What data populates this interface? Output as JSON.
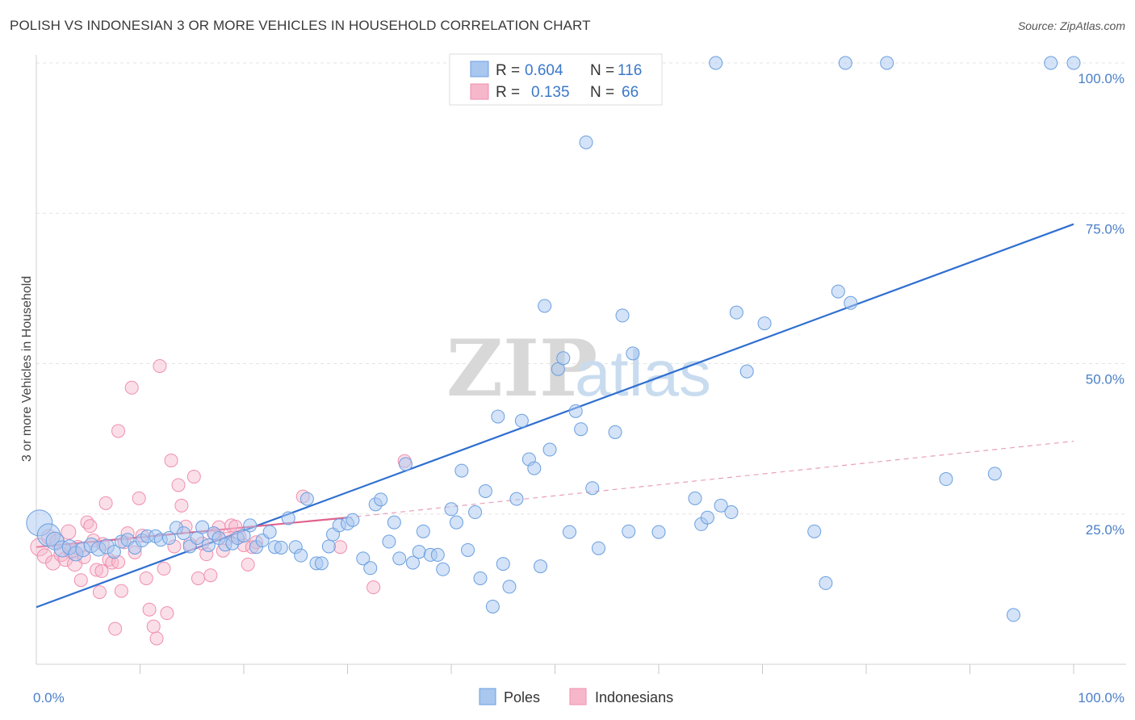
{
  "title": "POLISH VS INDONESIAN 3 OR MORE VEHICLES IN HOUSEHOLD CORRELATION CHART",
  "source": "Source: ZipAtlas.com",
  "watermark": {
    "zip": "ZIP",
    "atlas": "atlas"
  },
  "legend": {
    "rows": [
      {
        "r_label": "R =",
        "r_value": "0.604",
        "n_label": "N =",
        "n_value": "116",
        "color": "#a9c7ef"
      },
      {
        "r_label": "R =",
        "r_value": "0.135",
        "n_label": "N =",
        "n_value": "66",
        "color": "#f7b7cb"
      }
    ]
  },
  "bottom_legend": [
    {
      "label": "Poles",
      "color": "#a9c7ef"
    },
    {
      "label": "Indonesians",
      "color": "#f7b7cb"
    }
  ],
  "chart_data": {
    "type": "scatter",
    "title": "POLISH VS INDONESIAN 3 OR MORE VEHICLES IN HOUSEHOLD CORRELATION CHART",
    "xlabel": "",
    "ylabel": "3 or more Vehicles in Household",
    "xlim": [
      0,
      100
    ],
    "ylim": [
      0,
      100
    ],
    "x_tick_labels": [
      "0.0%",
      "100.0%"
    ],
    "y_ticks": [
      25,
      50,
      75,
      100
    ],
    "y_tick_labels": [
      "25.0%",
      "50.0%",
      "75.0%",
      "100.0%"
    ],
    "grid": true,
    "legend_position": "top-center",
    "series": [
      {
        "name": "Poles",
        "color": "#6a9fe0",
        "fill": "#a9c7ef",
        "trend": {
          "x": [
            0,
            100
          ],
          "y": [
            9.5,
            73.2
          ],
          "color": "#2f6fd0"
        },
        "points": [
          [
            0.3,
            23.5,
            16
          ],
          [
            1.2,
            21.5,
            14
          ],
          [
            1.8,
            20.5,
            11
          ],
          [
            2.5,
            19.2,
            10
          ],
          [
            3.2,
            19.5,
            9
          ],
          [
            3.8,
            18.4,
            9
          ],
          [
            4.5,
            19.1,
            9
          ],
          [
            5.3,
            19.8,
            9
          ],
          [
            6.0,
            19.2,
            9
          ],
          [
            6.8,
            19.6,
            9
          ],
          [
            7.5,
            18.7,
            8
          ],
          [
            8.2,
            20.4,
            8
          ],
          [
            8.8,
            20.7,
            8
          ],
          [
            9.5,
            19.4,
            8
          ],
          [
            10.2,
            20.6,
            8
          ],
          [
            10.7,
            21.3,
            8
          ],
          [
            11.5,
            21.3,
            8
          ],
          [
            12.0,
            20.7,
            8
          ],
          [
            12.8,
            21.0,
            8
          ],
          [
            13.5,
            22.7,
            8
          ],
          [
            14.2,
            21.8,
            8
          ],
          [
            14.8,
            19.6,
            8
          ],
          [
            15.5,
            21.0,
            8
          ],
          [
            16.0,
            22.8,
            8
          ],
          [
            16.6,
            19.8,
            8
          ],
          [
            17.1,
            21.8,
            8
          ],
          [
            17.6,
            21.0,
            8
          ],
          [
            18.2,
            19.9,
            8
          ],
          [
            18.9,
            20.1,
            8
          ],
          [
            19.4,
            21.0,
            8
          ],
          [
            20.0,
            21.4,
            8
          ],
          [
            20.6,
            23.1,
            8
          ],
          [
            21.2,
            19.5,
            8
          ],
          [
            21.8,
            20.6,
            8
          ],
          [
            22.5,
            22.0,
            8
          ],
          [
            23.0,
            19.5,
            8
          ],
          [
            23.6,
            19.4,
            8
          ],
          [
            24.3,
            24.3,
            8
          ],
          [
            25.0,
            19.5,
            8
          ],
          [
            25.5,
            18.1,
            8
          ],
          [
            26.1,
            27.5,
            8
          ],
          [
            27.0,
            16.8,
            8
          ],
          [
            27.5,
            16.8,
            8
          ],
          [
            28.2,
            19.6,
            8
          ],
          [
            28.6,
            21.6,
            8
          ],
          [
            29.2,
            23.1,
            8
          ],
          [
            30.0,
            23.4,
            8
          ],
          [
            30.5,
            24.0,
            8
          ],
          [
            31.5,
            17.6,
            8
          ],
          [
            32.2,
            16.0,
            8
          ],
          [
            32.7,
            26.6,
            8
          ],
          [
            33.2,
            27.4,
            8
          ],
          [
            34.0,
            20.4,
            8
          ],
          [
            34.5,
            23.6,
            8
          ],
          [
            35.0,
            17.6,
            8
          ],
          [
            35.6,
            33.3,
            8
          ],
          [
            36.3,
            16.9,
            8
          ],
          [
            36.9,
            18.7,
            8
          ],
          [
            37.3,
            22.1,
            8
          ],
          [
            38.0,
            18.2,
            8
          ],
          [
            38.7,
            18.2,
            8
          ],
          [
            39.2,
            15.8,
            8
          ],
          [
            40.0,
            25.8,
            8
          ],
          [
            40.5,
            23.6,
            8
          ],
          [
            41.0,
            32.2,
            8
          ],
          [
            41.6,
            19.0,
            8
          ],
          [
            42.3,
            25.3,
            8
          ],
          [
            42.8,
            14.3,
            8
          ],
          [
            43.3,
            28.8,
            8
          ],
          [
            44.0,
            9.6,
            8
          ],
          [
            44.5,
            41.2,
            8
          ],
          [
            45.0,
            16.7,
            8
          ],
          [
            45.6,
            12.9,
            8
          ],
          [
            46.3,
            27.5,
            8
          ],
          [
            46.8,
            40.5,
            8
          ],
          [
            47.5,
            34.1,
            8
          ],
          [
            48.0,
            32.6,
            8
          ],
          [
            48.6,
            16.3,
            8
          ],
          [
            49.0,
            59.6,
            8
          ],
          [
            49.5,
            35.7,
            8
          ],
          [
            50.3,
            49.1,
            8
          ],
          [
            50.8,
            50.9,
            8
          ],
          [
            51.4,
            22.0,
            8
          ],
          [
            52.0,
            42.1,
            8
          ],
          [
            52.5,
            39.1,
            8
          ],
          [
            53.0,
            86.8,
            8
          ],
          [
            53.6,
            29.3,
            8
          ],
          [
            54.2,
            19.3,
            8
          ],
          [
            55.0,
            100.0,
            8
          ],
          [
            55.8,
            38.6,
            8
          ],
          [
            56.5,
            58.0,
            8
          ],
          [
            57.1,
            22.1,
            8
          ],
          [
            57.5,
            51.7,
            8
          ],
          [
            58.0,
            100.0,
            8
          ],
          [
            59.1,
            100.0,
            8
          ],
          [
            63.5,
            27.6,
            8
          ],
          [
            64.1,
            23.3,
            8
          ],
          [
            64.7,
            24.4,
            8
          ],
          [
            65.5,
            100.0,
            8
          ],
          [
            66.0,
            26.4,
            8
          ],
          [
            67.0,
            25.3,
            8
          ],
          [
            67.5,
            58.5,
            8
          ],
          [
            68.5,
            48.7,
            8
          ],
          [
            70.2,
            56.7,
            8
          ],
          [
            75.0,
            22.1,
            8
          ],
          [
            76.1,
            13.5,
            8
          ],
          [
            77.3,
            62.0,
            8
          ],
          [
            78.0,
            100.0,
            8
          ],
          [
            87.7,
            30.8,
            8
          ],
          [
            92.4,
            31.7,
            8
          ],
          [
            94.2,
            8.2,
            8
          ],
          [
            97.8,
            100.0,
            8
          ],
          [
            100.0,
            100.0,
            8
          ],
          [
            82.0,
            100.0,
            8
          ],
          [
            78.5,
            60.1,
            8
          ],
          [
            60.0,
            22.0,
            8
          ]
        ]
      },
      {
        "name": "Indonesians",
        "color": "#ef8fae",
        "fill": "#f7b7cb",
        "trend_solid": {
          "x": [
            0,
            30
          ],
          "y": [
            19.5,
            24.4
          ],
          "color": "#e0628d"
        },
        "trend_dashed": {
          "x": [
            30,
            100
          ],
          "y": [
            24.4,
            37.1
          ],
          "color": "#e8a0b8"
        },
        "points": [
          [
            0.3,
            19.5,
            11
          ],
          [
            0.8,
            18.0,
            9
          ],
          [
            1.2,
            21.2,
            9
          ],
          [
            1.6,
            16.9,
            9
          ],
          [
            2.0,
            20.4,
            9
          ],
          [
            2.4,
            18.3,
            9
          ],
          [
            2.8,
            17.5,
            9
          ],
          [
            3.1,
            22.0,
            9
          ],
          [
            3.4,
            18.8,
            9
          ],
          [
            3.7,
            16.7,
            9
          ],
          [
            4.0,
            19.4,
            9
          ],
          [
            4.3,
            14.0,
            8
          ],
          [
            4.6,
            17.8,
            8
          ],
          [
            4.9,
            23.6,
            8
          ],
          [
            5.2,
            23.0,
            8
          ],
          [
            5.5,
            20.6,
            8
          ],
          [
            5.8,
            15.7,
            8
          ],
          [
            6.1,
            12.0,
            8
          ],
          [
            6.4,
            20.0,
            8
          ],
          [
            6.7,
            26.8,
            8
          ],
          [
            7.0,
            17.4,
            8
          ],
          [
            7.3,
            16.9,
            8
          ],
          [
            7.6,
            5.9,
            8
          ],
          [
            7.9,
            38.8,
            8
          ],
          [
            8.2,
            12.2,
            8
          ],
          [
            8.5,
            20.3,
            8
          ],
          [
            8.8,
            21.8,
            8
          ],
          [
            9.2,
            46.0,
            8
          ],
          [
            9.5,
            18.6,
            8
          ],
          [
            9.9,
            27.6,
            8
          ],
          [
            10.2,
            21.4,
            8
          ],
          [
            10.6,
            14.3,
            8
          ],
          [
            10.9,
            9.1,
            8
          ],
          [
            11.3,
            6.3,
            8
          ],
          [
            11.6,
            4.3,
            8
          ],
          [
            11.9,
            49.6,
            8
          ],
          [
            12.3,
            15.9,
            8
          ],
          [
            12.6,
            8.5,
            8
          ],
          [
            13.0,
            33.9,
            8
          ],
          [
            13.3,
            19.6,
            8
          ],
          [
            13.7,
            29.8,
            8
          ],
          [
            14.0,
            26.4,
            8
          ],
          [
            14.4,
            22.9,
            8
          ],
          [
            14.8,
            20.0,
            8
          ],
          [
            15.2,
            31.2,
            8
          ],
          [
            15.6,
            14.3,
            8
          ],
          [
            16.0,
            20.1,
            8
          ],
          [
            16.4,
            18.3,
            8
          ],
          [
            16.8,
            14.8,
            8
          ],
          [
            17.2,
            21.6,
            8
          ],
          [
            17.6,
            22.8,
            8
          ],
          [
            18.0,
            18.9,
            8
          ],
          [
            18.4,
            20.9,
            8
          ],
          [
            18.8,
            23.1,
            8
          ],
          [
            19.2,
            22.9,
            8
          ],
          [
            19.6,
            21.2,
            8
          ],
          [
            20.0,
            19.8,
            8
          ],
          [
            20.4,
            16.6,
            8
          ],
          [
            20.8,
            19.5,
            8
          ],
          [
            21.2,
            20.3,
            8
          ],
          [
            25.7,
            27.9,
            8
          ],
          [
            29.3,
            19.5,
            8
          ],
          [
            32.5,
            12.8,
            8
          ],
          [
            35.5,
            33.8,
            8
          ],
          [
            7.9,
            17.0,
            8
          ],
          [
            6.3,
            15.5,
            8
          ]
        ]
      }
    ]
  }
}
